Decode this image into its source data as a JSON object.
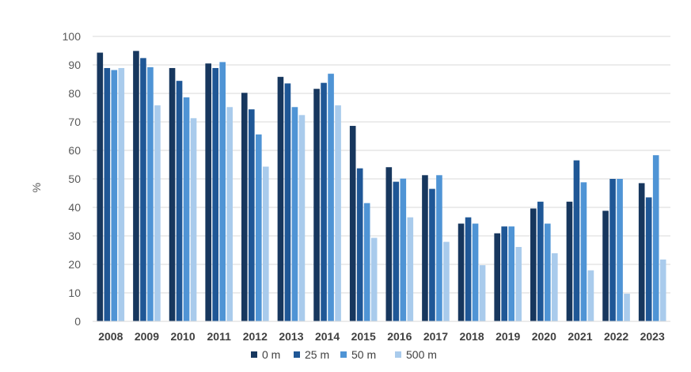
{
  "chart_data": {
    "type": "bar",
    "categories": [
      "2008",
      "2009",
      "2010",
      "2011",
      "2012",
      "2013",
      "2014",
      "2015",
      "2016",
      "2017",
      "2018",
      "2019",
      "2020",
      "2021",
      "2022",
      "2023"
    ],
    "series": [
      {
        "name": "0 m",
        "color": "#17375e",
        "values": [
          94.3,
          94.9,
          88.9,
          90.5,
          80.2,
          85.8,
          81.6,
          68.6,
          54.1,
          51.3,
          34.3,
          30.9,
          39.6,
          42.0,
          38.8,
          48.5
        ]
      },
      {
        "name": "25 m",
        "color": "#1f5796",
        "values": [
          88.9,
          92.4,
          84.4,
          88.9,
          74.4,
          83.5,
          83.7,
          53.7,
          49.0,
          46.5,
          36.5,
          33.3,
          42.0,
          56.5,
          50.0,
          43.5
        ]
      },
      {
        "name": "50 m",
        "color": "#4f94d5",
        "values": [
          88.2,
          89.2,
          78.6,
          91.0,
          65.6,
          75.2,
          86.9,
          41.5,
          50.1,
          51.3,
          34.3,
          33.3,
          34.3,
          48.8,
          50.0,
          58.3
        ]
      },
      {
        "name": "500 m",
        "color": "#a9cbec",
        "values": [
          88.9,
          75.8,
          71.3,
          75.2,
          54.3,
          72.4,
          75.8,
          29.3,
          36.5,
          27.9,
          19.7,
          26.1,
          23.9,
          17.9,
          9.7,
          21.7
        ]
      }
    ],
    "title": "",
    "xlabel": "",
    "ylabel": "%",
    "ylim": [
      0,
      100
    ],
    "yticks": [
      0,
      10,
      20,
      30,
      40,
      50,
      60,
      70,
      80,
      90,
      100
    ],
    "grid": true,
    "legend_position": "bottom"
  }
}
